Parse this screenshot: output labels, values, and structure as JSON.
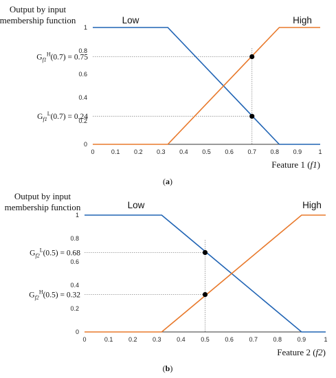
{
  "chart_data": [
    {
      "type": "line",
      "panel_label": "(a)",
      "ylabel_line1": "Output by input",
      "ylabel_line2": "membership function",
      "xlabel_text": "Feature 1 (",
      "xlabel_var": "f1",
      "xlabel_close": ")",
      "xlim": [
        0,
        1
      ],
      "ylim": [
        0,
        1
      ],
      "x_ticks": [
        "0",
        "0.1",
        "0.2",
        "0.3",
        "0.4",
        "0.5",
        "0.6",
        "0.7",
        "0.8",
        "0.9",
        "1"
      ],
      "x_tick_values": [
        0,
        0.1,
        0.2,
        0.3,
        0.4,
        0.5,
        0.6,
        0.7,
        0.8,
        0.9,
        1
      ],
      "y_ticks": [
        "0",
        "0.2",
        "0.4",
        "0.6",
        "0.8",
        "1"
      ],
      "y_tick_values": [
        0,
        0.2,
        0.4,
        0.6,
        0.8,
        1
      ],
      "series": [
        {
          "name": "Low",
          "color": "#1f63b4",
          "x": [
            0,
            0.33,
            0.82,
            1
          ],
          "y": [
            1,
            1,
            0,
            0
          ]
        },
        {
          "name": "High",
          "color": "#e8782a",
          "x": [
            0,
            0.33,
            0.82,
            1
          ],
          "y": [
            0,
            0,
            1,
            1
          ]
        }
      ],
      "markers": [
        {
          "x": 0.7,
          "y": 0.75,
          "text": "G_f1^H(0.7) = 0.75",
          "base": "G",
          "sub": "f1",
          "sup": "H",
          "rest": "(0.7) = 0.75"
        },
        {
          "x": 0.7,
          "y": 0.24,
          "text": "G_f1^L(0.7) = 0.24",
          "base": "G",
          "sub": "f1",
          "sup": "L",
          "rest": "(0.7) = 0.24"
        }
      ],
      "vline_x": 0.7
    },
    {
      "type": "line",
      "panel_label": "(b)",
      "ylabel_line1": "Output by input",
      "ylabel_line2": "membership function",
      "xlabel_text": "Feature 2 (",
      "xlabel_var": "f2",
      "xlabel_close": ")",
      "xlim": [
        0,
        1
      ],
      "ylim": [
        0,
        1
      ],
      "x_ticks": [
        "0",
        "0.1",
        "0.2",
        "0.3",
        "0.4",
        "0.5",
        "0.6",
        "0.7",
        "0.8",
        "0.9",
        "1"
      ],
      "x_tick_values": [
        0,
        0.1,
        0.2,
        0.3,
        0.4,
        0.5,
        0.6,
        0.7,
        0.8,
        0.9,
        1
      ],
      "y_ticks": [
        "0",
        "0.2",
        "0.4",
        "0.6",
        "0.8",
        "1"
      ],
      "y_tick_values": [
        0,
        0.2,
        0.4,
        0.6,
        0.8,
        1
      ],
      "series": [
        {
          "name": "Low",
          "color": "#1f63b4",
          "x": [
            0,
            0.32,
            0.9,
            1
          ],
          "y": [
            1,
            1,
            0,
            0
          ]
        },
        {
          "name": "High",
          "color": "#e8782a",
          "x": [
            0,
            0.32,
            0.9,
            1
          ],
          "y": [
            0,
            0,
            1,
            1
          ]
        }
      ],
      "markers": [
        {
          "x": 0.5,
          "y": 0.68,
          "text": "G_f2^L(0.5) = 0.68",
          "base": "G",
          "sub": "f2",
          "sup": "L",
          "rest": "(0.5) = 0.68"
        },
        {
          "x": 0.5,
          "y": 0.32,
          "text": "G_f2^H(0.5) = 0.32",
          "base": "G",
          "sub": "f2",
          "sup": "H",
          "rest": "(0.5) = 0.32"
        }
      ],
      "vline_x": 0.5
    }
  ]
}
